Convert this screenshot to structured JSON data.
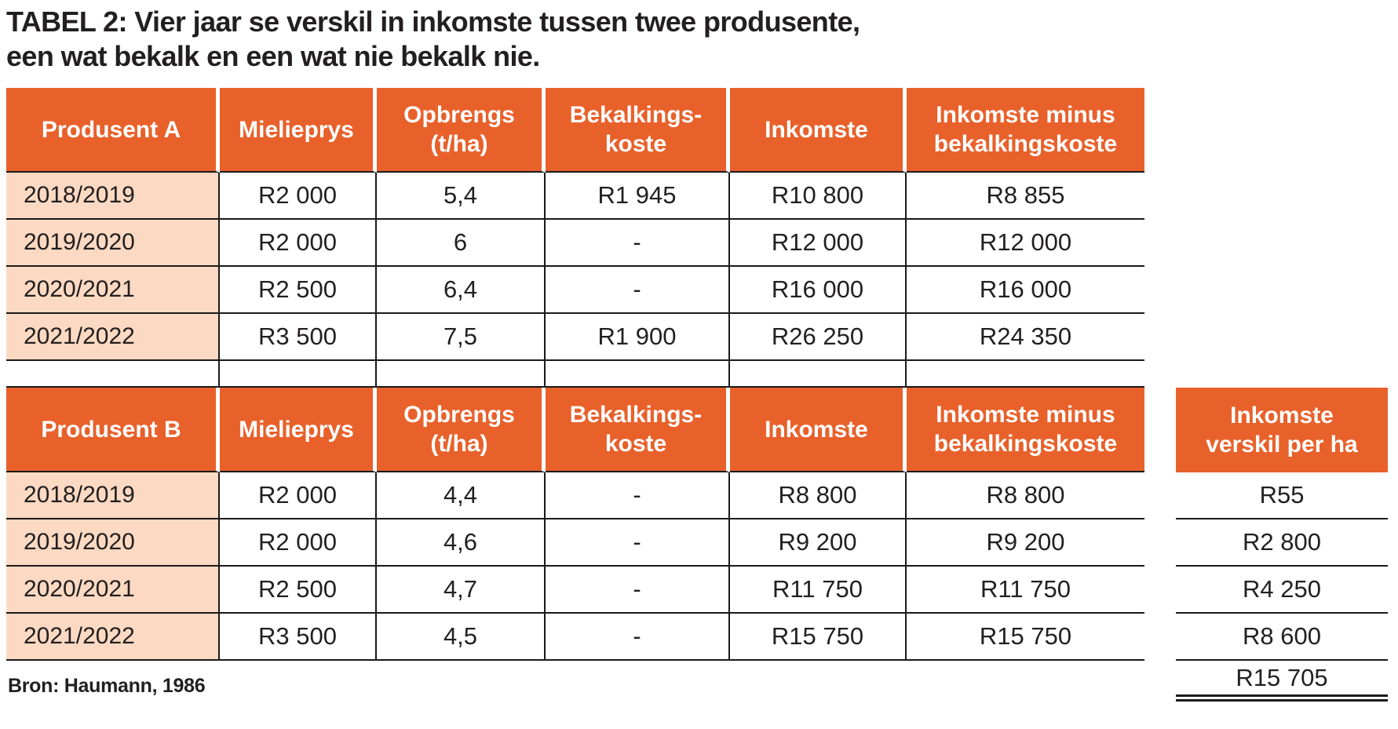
{
  "title": {
    "line1": "TABEL 2: Vier jaar se verskil in inkomste tussen twee produsente,",
    "line2": "een wat bekalk en een wat nie bekalk nie."
  },
  "source": "Bron: Haumann, 1986",
  "colors": {
    "orange": "#E8612B",
    "pink": "#FBD9C2",
    "line": "#1A1A1A",
    "text": "#231F20"
  },
  "table_a": {
    "headers": [
      "Produsent A",
      "Mielieprys",
      "Opbrengs\n(t/ha)",
      "Bekalkings-\nkoste",
      "Inkomste",
      "Inkomste minus\nbekalkingskoste"
    ],
    "rows": [
      [
        "2018/2019",
        "R2 000",
        "5,4",
        "R1 945",
        "R10 800",
        "R8 855"
      ],
      [
        "2019/2020",
        "R2 000",
        "6",
        "-",
        "R12 000",
        "R12 000"
      ],
      [
        "2020/2021",
        "R2 500",
        "6,4",
        "-",
        "R16 000",
        "R16 000"
      ],
      [
        "2021/2022",
        "R3 500",
        "7,5",
        "R1 900",
        "R26 250",
        "R24 350"
      ]
    ]
  },
  "table_b": {
    "headers": [
      "Produsent B",
      "Mielieprys",
      "Opbrengs\n(t/ha)",
      "Bekalkings-\nkoste",
      "Inkomste",
      "Inkomste minus\nbekalkingskoste"
    ],
    "rows": [
      [
        "2018/2019",
        "R2 000",
        "4,4",
        "-",
        "R8 800",
        "R8 800"
      ],
      [
        "2019/2020",
        "R2 000",
        "4,6",
        "-",
        "R9 200",
        "R9 200"
      ],
      [
        "2020/2021",
        "R2 500",
        "4,7",
        "-",
        "R11 750",
        "R11 750"
      ],
      [
        "2021/2022",
        "R3 500",
        "4,5",
        "-",
        "R15 750",
        "R15 750"
      ]
    ]
  },
  "diff_column": {
    "header": "Inkomste\nverskil per ha",
    "values": [
      "R55",
      "R2 800",
      "R4 250",
      "R8 600"
    ],
    "total": "R15 705"
  }
}
